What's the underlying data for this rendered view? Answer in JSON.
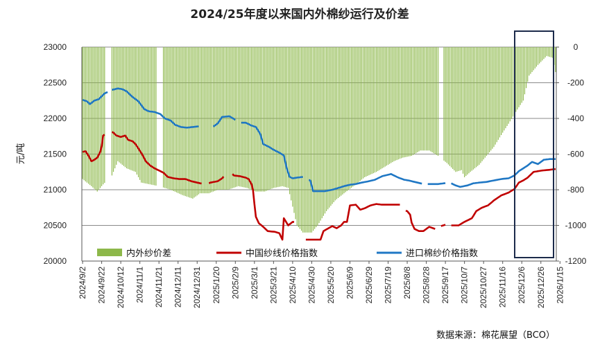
{
  "chart_data": {
    "type": "bar+line",
    "title": "2024/25年度以来国内外棉纱运行及价差",
    "ylabel": "元/吨",
    "ylim_left": [
      20000,
      23000
    ],
    "yticks_left": [
      "23000",
      "22500",
      "22000",
      "21500",
      "21000",
      "20500",
      "20000"
    ],
    "ylim_right": [
      -1200,
      0
    ],
    "yticks_right": [
      "0",
      "-200",
      "-400",
      "-600",
      "-800",
      "-1000",
      "-1200"
    ],
    "x_tick_labels": [
      "2024/9/2",
      "2024/9/22",
      "2024/10/12",
      "2024/11/1",
      "2024/11/21",
      "2024/12/11",
      "2024/12/31",
      "2025/1/20",
      "2025/2/9",
      "2025/3/1",
      "2025/3/21",
      "2025/4/10",
      "2025/4/30",
      "2025/5/20",
      "2025/6/9",
      "2025/6/29",
      "2025/7/19",
      "2025/8/8",
      "2025/8/28",
      "2025/9/17",
      "2025/10/7",
      "2025/10/27",
      "2025/11/16",
      "2025/12/6",
      "2025/12/26",
      "2026/1/15"
    ],
    "grid": true,
    "legend_position": "bottom-inside",
    "series": [
      {
        "name": "内外纱价差",
        "axis": "right",
        "kind": "bar",
        "color": "#8db84a",
        "points": [
          [
            0,
            -740
          ],
          [
            6,
            -780
          ],
          [
            10,
            -810
          ],
          [
            14,
            -770
          ],
          [
            20,
            -720
          ],
          [
            24,
            -640
          ],
          [
            30,
            -680
          ],
          [
            36,
            -700
          ],
          [
            40,
            -760
          ],
          [
            46,
            -770
          ],
          [
            52,
            -780
          ],
          [
            60,
            -800
          ],
          [
            68,
            -830
          ],
          [
            75,
            -850
          ],
          [
            80,
            -820
          ],
          [
            86,
            -820
          ],
          [
            92,
            -800
          ],
          [
            99,
            -800
          ],
          [
            106,
            -780
          ],
          [
            112,
            -790
          ],
          [
            118,
            -810
          ],
          [
            124,
            -810
          ],
          [
            130,
            -790
          ],
          [
            136,
            -780
          ],
          [
            140,
            -790
          ],
          [
            146,
            -1000
          ],
          [
            150,
            -1040
          ],
          [
            156,
            -1040
          ],
          [
            160,
            -1000
          ],
          [
            166,
            -920
          ],
          [
            172,
            -860
          ],
          [
            178,
            -820
          ],
          [
            186,
            -770
          ],
          [
            192,
            -730
          ],
          [
            200,
            -700
          ],
          [
            206,
            -670
          ],
          [
            212,
            -640
          ],
          [
            218,
            -620
          ],
          [
            224,
            -610
          ],
          [
            230,
            -580
          ],
          [
            236,
            -580
          ],
          [
            242,
            -610
          ],
          [
            248,
            -650
          ],
          [
            254,
            -700
          ],
          [
            258,
            -690
          ],
          [
            260,
            -730
          ],
          [
            264,
            -700
          ],
          [
            270,
            -660
          ],
          [
            274,
            -620
          ],
          [
            280,
            -560
          ],
          [
            286,
            -480
          ],
          [
            290,
            -430
          ],
          [
            296,
            -350
          ],
          [
            300,
            -300
          ],
          [
            304,
            -160
          ],
          [
            310,
            -100
          ],
          [
            316,
            -50
          ],
          [
            320,
            -60
          ],
          [
            322,
            -140
          ]
        ],
        "gaps": [
          [
            16,
            19
          ],
          [
            51,
            54
          ],
          [
            243,
            245
          ]
        ]
      },
      {
        "name": "中国纱线价格指数",
        "axis": "left",
        "kind": "line",
        "color": "#c00000",
        "points": [
          [
            0,
            21530
          ],
          [
            2,
            21540
          ],
          [
            4,
            21480
          ],
          [
            6,
            21400
          ],
          [
            8,
            21420
          ],
          [
            10,
            21450
          ],
          [
            12,
            21530
          ],
          [
            13,
            21610
          ],
          [
            14,
            21760
          ],
          [
            19,
            21820
          ],
          [
            21,
            21800
          ],
          [
            23,
            21760
          ],
          [
            26,
            21740
          ],
          [
            29,
            21760
          ],
          [
            31,
            21700
          ],
          [
            34,
            21680
          ],
          [
            36,
            21640
          ],
          [
            38,
            21580
          ],
          [
            41,
            21480
          ],
          [
            43,
            21400
          ],
          [
            46,
            21340
          ],
          [
            49,
            21300
          ],
          [
            52,
            21270
          ],
          [
            55,
            21240
          ],
          [
            58,
            21180
          ],
          [
            62,
            21160
          ],
          [
            66,
            21150
          ],
          [
            70,
            21150
          ],
          [
            74,
            21120
          ],
          [
            78,
            21100
          ],
          [
            80,
            21090
          ],
          [
            85,
            21080
          ],
          [
            87,
            21100
          ],
          [
            92,
            21120
          ],
          [
            95,
            21160
          ],
          [
            98,
            21230
          ],
          [
            101,
            21240
          ],
          [
            103,
            21200
          ],
          [
            107,
            21190
          ],
          [
            111,
            21170
          ],
          [
            113,
            21150
          ],
          [
            115,
            21080
          ],
          [
            116,
            21000
          ],
          [
            117,
            20800
          ],
          [
            118,
            20620
          ],
          [
            120,
            20530
          ],
          [
            123,
            20480
          ],
          [
            126,
            20420
          ],
          [
            131,
            20410
          ],
          [
            134,
            20390
          ],
          [
            136,
            20300
          ],
          [
            137,
            20600
          ],
          [
            140,
            20500
          ],
          [
            143,
            20550
          ],
          [
            148,
            20540
          ],
          [
            150,
            20420
          ],
          [
            152,
            20300
          ],
          [
            155,
            20300
          ],
          [
            162,
            20300
          ],
          [
            164,
            20420
          ],
          [
            170,
            20490
          ],
          [
            173,
            20460
          ],
          [
            176,
            20500
          ],
          [
            178,
            20550
          ],
          [
            180,
            20550
          ],
          [
            182,
            20780
          ],
          [
            186,
            20790
          ],
          [
            189,
            20720
          ],
          [
            192,
            20740
          ],
          [
            196,
            20780
          ],
          [
            200,
            20800
          ],
          [
            204,
            20790
          ],
          [
            208,
            20790
          ],
          [
            212,
            20790
          ],
          [
            216,
            20790
          ],
          [
            219,
            20710
          ],
          [
            221,
            20700
          ],
          [
            223,
            20650
          ],
          [
            224,
            20540
          ],
          [
            226,
            20450
          ],
          [
            229,
            20420
          ],
          [
            232,
            20420
          ],
          [
            236,
            20480
          ],
          [
            240,
            20450
          ],
          [
            244,
            20490
          ],
          [
            247,
            20510
          ],
          [
            250,
            20500
          ],
          [
            256,
            20500
          ],
          [
            260,
            20550
          ],
          [
            265,
            20600
          ],
          [
            268,
            20700
          ],
          [
            272,
            20750
          ],
          [
            276,
            20780
          ],
          [
            280,
            20850
          ],
          [
            285,
            20920
          ],
          [
            290,
            20960
          ],
          [
            294,
            21010
          ],
          [
            297,
            21100
          ],
          [
            300,
            21130
          ],
          [
            303,
            21170
          ],
          [
            307,
            21250
          ],
          [
            313,
            21270
          ],
          [
            318,
            21280
          ],
          [
            322,
            21290
          ]
        ],
        "gaps": [
          [
            16,
            19
          ],
          [
            82,
            85
          ],
          [
            97,
            101
          ],
          [
            145,
            148
          ],
          [
            150,
            151
          ],
          [
            217,
            219
          ],
          [
            241,
            243
          ],
          [
            248,
            250
          ]
        ]
      },
      {
        "name": "进口棉纱价格指数",
        "axis": "left",
        "kind": "line",
        "color": "#1f77c4",
        "points": [
          [
            0,
            22260
          ],
          [
            3,
            22240
          ],
          [
            5,
            22200
          ],
          [
            8,
            22250
          ],
          [
            11,
            22270
          ],
          [
            15,
            22350
          ],
          [
            16,
            22360
          ],
          [
            20,
            22400
          ],
          [
            24,
            22420
          ],
          [
            27,
            22410
          ],
          [
            30,
            22380
          ],
          [
            34,
            22300
          ],
          [
            38,
            22240
          ],
          [
            42,
            22130
          ],
          [
            45,
            22100
          ],
          [
            49,
            22090
          ],
          [
            53,
            22060
          ],
          [
            56,
            22000
          ],
          [
            60,
            21970
          ],
          [
            63,
            21910
          ],
          [
            67,
            21880
          ],
          [
            71,
            21870
          ],
          [
            75,
            21880
          ],
          [
            80,
            21890
          ],
          [
            86,
            21890
          ],
          [
            88,
            21870
          ],
          [
            92,
            21930
          ],
          [
            95,
            22020
          ],
          [
            100,
            22030
          ],
          [
            104,
            21980
          ],
          [
            108,
            21940
          ],
          [
            111,
            21940
          ],
          [
            115,
            21900
          ],
          [
            118,
            21880
          ],
          [
            121,
            21780
          ],
          [
            123,
            21640
          ],
          [
            127,
            21600
          ],
          [
            130,
            21560
          ],
          [
            134,
            21520
          ],
          [
            137,
            21480
          ],
          [
            139,
            21300
          ],
          [
            141,
            21180
          ],
          [
            143,
            21160
          ],
          [
            146,
            21170
          ],
          [
            150,
            21180
          ],
          [
            152,
            21150
          ],
          [
            155,
            21130
          ],
          [
            157,
            20980
          ],
          [
            160,
            20980
          ],
          [
            165,
            20980
          ],
          [
            170,
            21000
          ],
          [
            175,
            21030
          ],
          [
            178,
            21050
          ],
          [
            182,
            21070
          ],
          [
            186,
            21080
          ],
          [
            190,
            21100
          ],
          [
            195,
            21120
          ],
          [
            199,
            21140
          ],
          [
            204,
            21190
          ],
          [
            210,
            21220
          ],
          [
            215,
            21170
          ],
          [
            219,
            21140
          ],
          [
            222,
            21130
          ],
          [
            228,
            21100
          ],
          [
            232,
            21080
          ],
          [
            236,
            21080
          ],
          [
            242,
            21080
          ],
          [
            246,
            21090
          ],
          [
            250,
            21100
          ],
          [
            254,
            21060
          ],
          [
            257,
            21040
          ],
          [
            262,
            21060
          ],
          [
            266,
            21090
          ],
          [
            270,
            21100
          ],
          [
            275,
            21110
          ],
          [
            280,
            21130
          ],
          [
            285,
            21150
          ],
          [
            290,
            21160
          ],
          [
            294,
            21200
          ],
          [
            297,
            21260
          ],
          [
            300,
            21300
          ],
          [
            303,
            21340
          ],
          [
            306,
            21390
          ],
          [
            310,
            21360
          ],
          [
            314,
            21420
          ],
          [
            318,
            21430
          ],
          [
            322,
            21430
          ]
        ],
        "gaps": [
          [
            18,
            19
          ],
          [
            80,
            88
          ],
          [
            105,
            107
          ],
          [
            151,
            153
          ],
          [
            232,
            234
          ],
          [
            248,
            250
          ]
        ]
      }
    ],
    "source_note": "数据来源：棉花展望（BCO）"
  }
}
